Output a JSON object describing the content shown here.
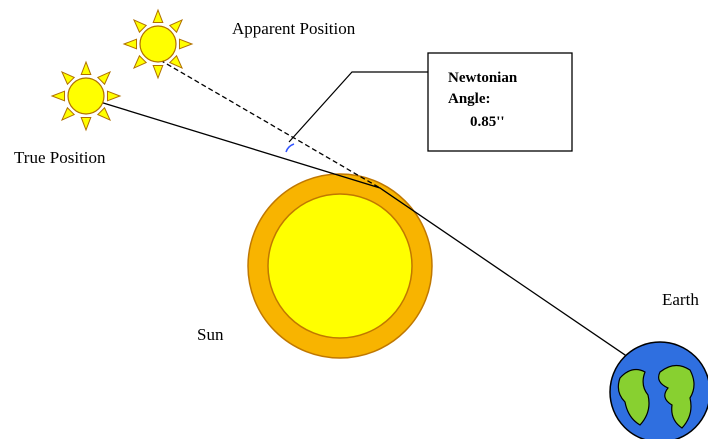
{
  "labels": {
    "apparent": "Apparent Position",
    "true": "True Position",
    "sun": "Sun",
    "earth": "Earth"
  },
  "angle_box": {
    "lines": [
      "Newtonian",
      "Angle:",
      "0.85''"
    ]
  }
}
